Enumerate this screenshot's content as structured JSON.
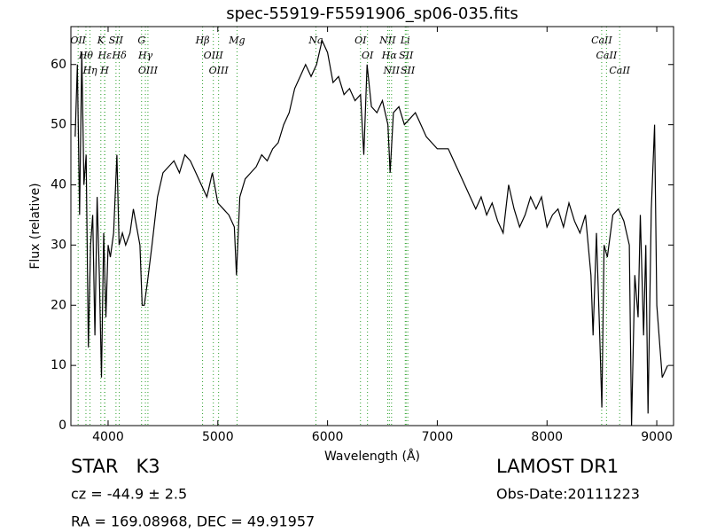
{
  "chart_data": {
    "type": "line",
    "title": "spec-55919-F5591906_sp06-035.fits",
    "xlabel": "Wavelength (Å)",
    "ylabel": "Flux (relative)",
    "color": "#000000",
    "line_color": "#2ca02c",
    "xlim": [
      3661,
      9153
    ],
    "ylim": [
      0,
      66.3
    ],
    "xticks": [
      4000,
      5000,
      6000,
      7000,
      8000,
      9000
    ],
    "yticks": [
      0,
      10,
      20,
      30,
      40,
      50,
      60
    ],
    "x": [
      3700,
      3720,
      3740,
      3760,
      3780,
      3800,
      3820,
      3840,
      3860,
      3880,
      3900,
      3920,
      3940,
      3960,
      3980,
      4000,
      4020,
      4050,
      4080,
      4100,
      4130,
      4160,
      4200,
      4230,
      4260,
      4290,
      4310,
      4330,
      4360,
      4400,
      4450,
      4500,
      4550,
      4600,
      4650,
      4700,
      4750,
      4800,
      4850,
      4900,
      4950,
      5000,
      5050,
      5100,
      5150,
      5170,
      5200,
      5250,
      5300,
      5350,
      5400,
      5450,
      5500,
      5550,
      5600,
      5650,
      5700,
      5750,
      5800,
      5850,
      5900,
      5950,
      6000,
      6050,
      6100,
      6150,
      6200,
      6250,
      6300,
      6330,
      6360,
      6400,
      6450,
      6500,
      6550,
      6570,
      6600,
      6650,
      6700,
      6750,
      6800,
      6850,
      6900,
      6950,
      7000,
      7050,
      7100,
      7150,
      7200,
      7250,
      7300,
      7350,
      7400,
      7450,
      7500,
      7550,
      7600,
      7650,
      7700,
      7750,
      7800,
      7850,
      7900,
      7950,
      8000,
      8050,
      8100,
      8150,
      8200,
      8250,
      8300,
      8350,
      8400,
      8420,
      8450,
      8480,
      8500,
      8520,
      8550,
      8600,
      8650,
      8700,
      8750,
      8770,
      8800,
      8830,
      8850,
      8880,
      8900,
      8920,
      8950,
      8980,
      9000,
      9050,
      9100
    ],
    "values": [
      48,
      60,
      35,
      62,
      40,
      45,
      13,
      30,
      35,
      15,
      38,
      25,
      8,
      32,
      18,
      30,
      28,
      32,
      45,
      30,
      32,
      30,
      32,
      36,
      33,
      30,
      20,
      20,
      24,
      30,
      38,
      42,
      43,
      44,
      42,
      45,
      44,
      42,
      40,
      38,
      42,
      37,
      36,
      35,
      33,
      25,
      38,
      41,
      42,
      43,
      45,
      44,
      46,
      47,
      50,
      52,
      56,
      58,
      60,
      58,
      60,
      64,
      62,
      57,
      58,
      55,
      56,
      54,
      55,
      45,
      60,
      53,
      52,
      54,
      50,
      42,
      52,
      53,
      50,
      51,
      52,
      50,
      48,
      47,
      46,
      46,
      46,
      44,
      42,
      40,
      38,
      36,
      38,
      35,
      37,
      34,
      32,
      40,
      36,
      33,
      35,
      38,
      36,
      38,
      33,
      35,
      36,
      33,
      37,
      34,
      32,
      35,
      25,
      15,
      32,
      15,
      3,
      30,
      28,
      35,
      36,
      34,
      30,
      0,
      25,
      18,
      35,
      15,
      30,
      2,
      36,
      50,
      20,
      8,
      10
    ],
    "lines": [
      {
        "label": "OII",
        "x": 3727
      },
      {
        "label": "Hθ",
        "x": 3798
      },
      {
        "label": "Hη",
        "x": 3835
      },
      {
        "label": "K",
        "x": 3934
      },
      {
        "label": "Hε",
        "x": 3970
      },
      {
        "label": "H",
        "x": 3968
      },
      {
        "label": "SII",
        "x": 4072
      },
      {
        "label": "Hδ",
        "x": 4102
      },
      {
        "label": "G",
        "x": 4305
      },
      {
        "label": "Hγ",
        "x": 4340
      },
      {
        "label": "OIII",
        "x": 4363
      },
      {
        "label": "Hβ",
        "x": 4861
      },
      {
        "label": "OIII",
        "x": 4959
      },
      {
        "label": "OIII",
        "x": 5007
      },
      {
        "label": "Mg",
        "x": 5175
      },
      {
        "label": "Na",
        "x": 5894
      },
      {
        "label": "OI",
        "x": 6300
      },
      {
        "label": "OI",
        "x": 6364
      },
      {
        "label": "NII",
        "x": 6548
      },
      {
        "label": "Hα",
        "x": 6563
      },
      {
        "label": "NII",
        "x": 6583
      },
      {
        "label": "Li",
        "x": 6708
      },
      {
        "label": "SII",
        "x": 6716
      },
      {
        "label": "SII",
        "x": 6731
      },
      {
        "label": "CaII",
        "x": 8498
      },
      {
        "label": "CaII",
        "x": 8542
      },
      {
        "label": "CaII",
        "x": 8662
      }
    ]
  },
  "footer": {
    "class": "STAR   K3",
    "cz": "cz = -44.9 ± 2.5",
    "coords": "RA = 169.08968, DEC = 49.91957",
    "survey": "LAMOST DR1",
    "date": "Obs-Date:20111223"
  }
}
